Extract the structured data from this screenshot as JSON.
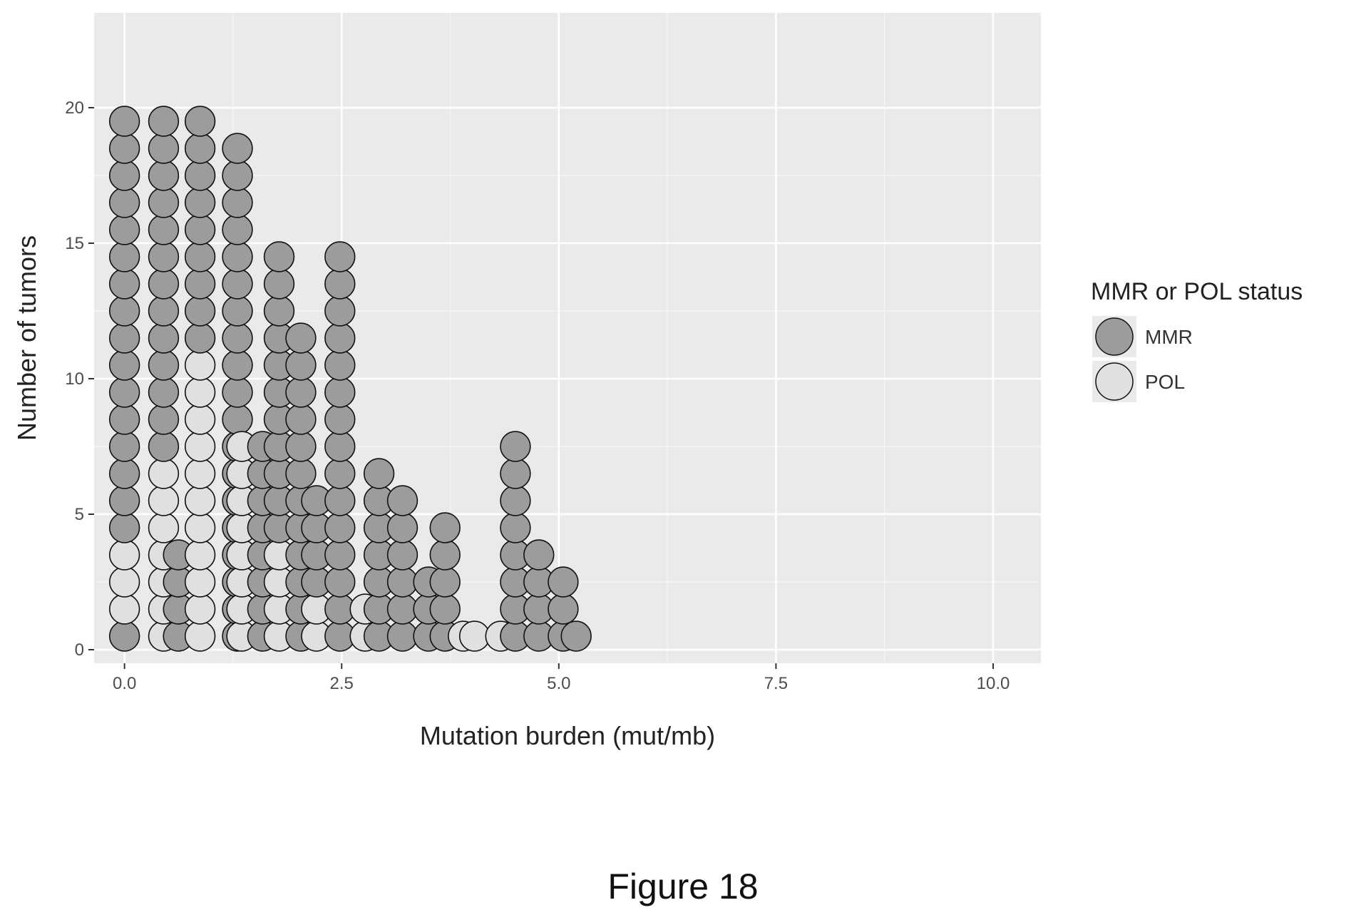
{
  "figure": {
    "caption": "Figure 18"
  },
  "chart_data": {
    "type": "dotplot",
    "title": "",
    "xlabel": "Mutation burden (mut/mb)",
    "ylabel": "Number of tumors",
    "xlim": [
      -0.35,
      10.55
    ],
    "ylim": [
      -0.5,
      23.5
    ],
    "x_ticks": [
      "0.0",
      "2.5",
      "5.0",
      "7.5",
      "10.0"
    ],
    "y_ticks": [
      "0",
      "5",
      "10",
      "15",
      "20"
    ],
    "grid": true,
    "background": "#eaeaea",
    "legend": {
      "title": "MMR or POL status",
      "position": "right",
      "items": [
        {
          "label": "MMR",
          "color": "#9c9c9c"
        },
        {
          "label": "POL",
          "color": "#e0e0e0"
        }
      ]
    },
    "stacks": [
      {
        "x": 0.0,
        "n": 20,
        "pol": [
          2,
          3,
          4
        ]
      },
      {
        "x": 0.45,
        "n": 20,
        "pol": [
          1,
          2,
          3,
          4,
          5,
          6,
          7
        ]
      },
      {
        "x": 0.62,
        "n": 4,
        "pol": []
      },
      {
        "x": 0.87,
        "n": 20,
        "pol": [
          1,
          2,
          3,
          4,
          5,
          6,
          7,
          8,
          9,
          10,
          11
        ]
      },
      {
        "x": 1.3,
        "n": 19,
        "pol": []
      },
      {
        "x": 1.35,
        "n": 8,
        "pol": [
          1,
          2,
          3,
          4,
          5,
          6,
          7,
          8
        ]
      },
      {
        "x": 1.59,
        "n": 8,
        "pol": []
      },
      {
        "x": 1.78,
        "n": 15,
        "pol": [
          1,
          2,
          3,
          4
        ]
      },
      {
        "x": 2.03,
        "n": 12,
        "pol": []
      },
      {
        "x": 2.21,
        "n": 6,
        "pol": [
          1,
          2
        ]
      },
      {
        "x": 2.48,
        "n": 15,
        "pol": []
      },
      {
        "x": 2.77,
        "n": 2,
        "pol": [
          1,
          2
        ]
      },
      {
        "x": 2.93,
        "n": 7,
        "pol": []
      },
      {
        "x": 3.2,
        "n": 6,
        "pol": []
      },
      {
        "x": 3.5,
        "n": 3,
        "pol": []
      },
      {
        "x": 3.69,
        "n": 5,
        "pol": []
      },
      {
        "x": 3.9,
        "n": 1,
        "pol": [
          1
        ]
      },
      {
        "x": 4.03,
        "n": 1,
        "pol": [
          1
        ]
      },
      {
        "x": 4.33,
        "n": 1,
        "pol": [
          1
        ]
      },
      {
        "x": 4.5,
        "n": 8,
        "pol": []
      },
      {
        "x": 4.77,
        "n": 4,
        "pol": []
      },
      {
        "x": 5.05,
        "n": 3,
        "pol": []
      },
      {
        "x": 5.2,
        "n": 1,
        "pol": []
      }
    ]
  }
}
